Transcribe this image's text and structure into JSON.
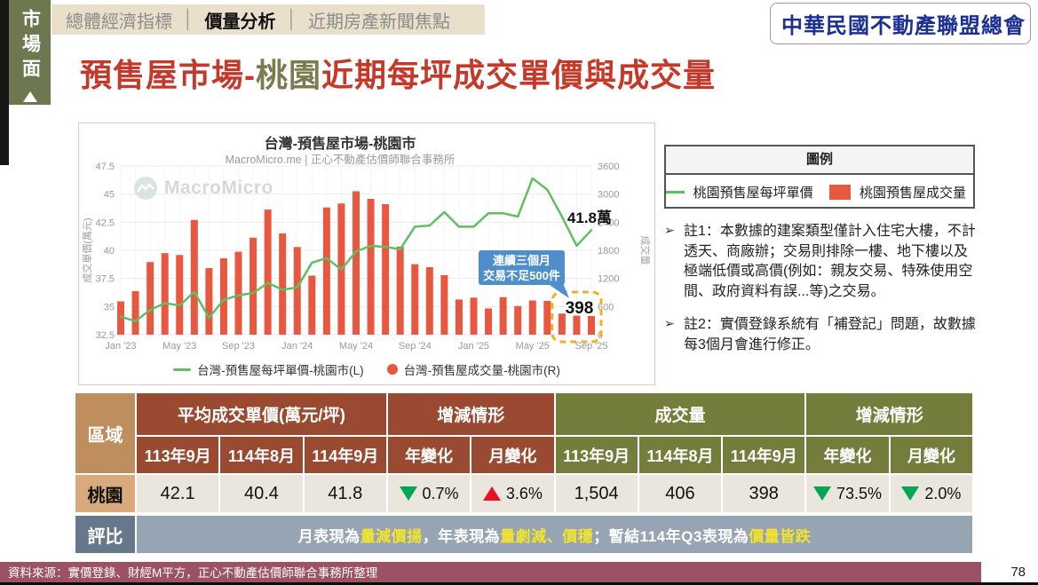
{
  "sidebar": {
    "label": "市場面"
  },
  "header": {
    "tabs": [
      {
        "label": "總體經濟指標",
        "active": false
      },
      {
        "label": "價量分析",
        "active": true
      },
      {
        "label": "近期房產新聞焦點",
        "active": false
      }
    ],
    "separator": "│",
    "logo_text": "中華民國不動產聯盟總會"
  },
  "title": {
    "parts": [
      {
        "text": "預售屋市場-",
        "color": "#c5392b"
      },
      {
        "text": "桃園",
        "color": "#7b7b52"
      },
      {
        "text": "近期每坪成交單價與成交量",
        "color": "#c5392b"
      }
    ]
  },
  "chart_data": {
    "type": "line+bar",
    "title": "台灣-預售屋市場-桃園市",
    "subtitle": "MacroMicro.me | 正心不動產估價師聯合事務所",
    "watermark": "MacroMicro",
    "x_categories": [
      "Jan '23",
      "Feb '23",
      "Mar '23",
      "Apr '23",
      "May '23",
      "Jun '23",
      "Jul '23",
      "Aug '23",
      "Sep '23",
      "Oct '23",
      "Nov '23",
      "Dec '23",
      "Jan '24",
      "Feb '24",
      "Mar '24",
      "Apr '24",
      "May '24",
      "Jun '24",
      "Jul '24",
      "Aug '24",
      "Sep '24",
      "Oct '24",
      "Nov '24",
      "Dec '24",
      "Jan '25",
      "Feb '25",
      "Mar '25",
      "Apr '25",
      "May '25",
      "Jun '25",
      "Jul '25",
      "Aug '25",
      "Sep '25"
    ],
    "x_tick_every": 4,
    "left_axis": {
      "label": "成交單價(萬元)",
      "min": 32.5,
      "max": 47.5,
      "ticks": [
        47.5,
        45,
        42.5,
        40,
        37.5,
        35,
        32.5
      ]
    },
    "right_axis": {
      "label": "成交量",
      "min": 0,
      "max": 3600,
      "ticks": [
        3600,
        3000,
        2400,
        1800,
        1200,
        600,
        0
      ]
    },
    "grid": true,
    "series": [
      {
        "name": "台灣-預售屋每坪單價-桃園市(L)",
        "type": "line",
        "axis": "left",
        "color": "#5fbf63",
        "values": [
          34.1,
          33.7,
          34.7,
          35.3,
          35.1,
          36.3,
          34.0,
          35.6,
          36.0,
          36.2,
          37.1,
          36.5,
          36.7,
          38.9,
          39.3,
          38.3,
          39.9,
          40.4,
          40.3,
          40.1,
          42.1,
          42.2,
          43.4,
          42.1,
          42.1,
          43.3,
          43.3,
          43.0,
          46.4,
          45.4,
          43.0,
          40.4,
          41.8
        ]
      },
      {
        "name": "台灣-預售屋成交量-桃園市(R)",
        "type": "bar",
        "axis": "right",
        "color": "#e8573f",
        "values": [
          710,
          930,
          1550,
          1740,
          1700,
          2450,
          1420,
          1630,
          1770,
          2070,
          2670,
          2160,
          1870,
          1260,
          2715,
          2800,
          3060,
          2900,
          2785,
          1880,
          1504,
          1440,
          1270,
          750,
          790,
          560,
          800,
          610,
          730,
          720,
          450,
          406,
          398
        ]
      }
    ],
    "annotations": {
      "end_label": "41.8萬",
      "callout": {
        "lines": [
          "連續三個月",
          "交易不足500件"
        ],
        "color": "#4e8fcb"
      },
      "box_label": "398",
      "dashed_box": {
        "from_index": 30,
        "to_index": 32,
        "color": "#f2b01e"
      }
    }
  },
  "legend_box": {
    "title": "圖例",
    "items": [
      {
        "label": "桃園預售屋每坪單價",
        "type": "line"
      },
      {
        "label": "桃園預售屋成交量",
        "type": "bar"
      }
    ]
  },
  "notes": [
    {
      "bullet": "➢",
      "label": "註1：",
      "text": "本數據的建案類型僅計入住宅大樓，不計透天、商廠辦；交易則排除一樓、地下樓以及極端低價或高價(例如：親友交易、特殊使用空間、政府資料有誤...等)之交易。"
    },
    {
      "bullet": "➢",
      "label": "註2：",
      "text": "實價登錄系統有「補登記」問題，故數據每3個月會進行修正。"
    }
  ],
  "table": {
    "region_header": "區域",
    "groups": {
      "price": "平均成交單價(萬元/坪)",
      "price_change": "增減情形",
      "volume": "成交量",
      "volume_change": "增減情形"
    },
    "sub_headers": [
      "113年9月",
      "114年8月",
      "114年9月",
      "年變化",
      "月變化",
      "113年9月",
      "114年8月",
      "114年9月",
      "年變化",
      "月變化"
    ],
    "row": {
      "region": "桃園",
      "price": [
        "42.1",
        "40.4",
        "41.8"
      ],
      "price_year_change": {
        "direction": "down",
        "value": "0.7%",
        "color": "#00a651"
      },
      "price_month_change": {
        "direction": "up",
        "value": "3.6%",
        "color": "#e81123"
      },
      "volume": [
        "1,504",
        "406",
        "398"
      ],
      "volume_year_change": {
        "direction": "down",
        "value": "73.5%",
        "color": "#00a651"
      },
      "volume_month_change": {
        "direction": "down",
        "value": "2.0%",
        "color": "#00a651"
      }
    },
    "eval": {
      "label": "評比",
      "highlight_color": "#f2e32f",
      "segments": [
        {
          "text": "月表現為",
          "highlight": false
        },
        {
          "text": "量減價揚",
          "highlight": true
        },
        {
          "text": "，年表現為",
          "highlight": false
        },
        {
          "text": "量劇減、價穩",
          "highlight": true
        },
        {
          "text": "；暫結114年Q3表現為",
          "highlight": false
        },
        {
          "text": "價量皆跌",
          "highlight": true
        }
      ]
    }
  },
  "footer": {
    "source": "資料來源：實價登錄、財經M平方，正心不動產估價師聯合事務所整理",
    "page": "78"
  }
}
